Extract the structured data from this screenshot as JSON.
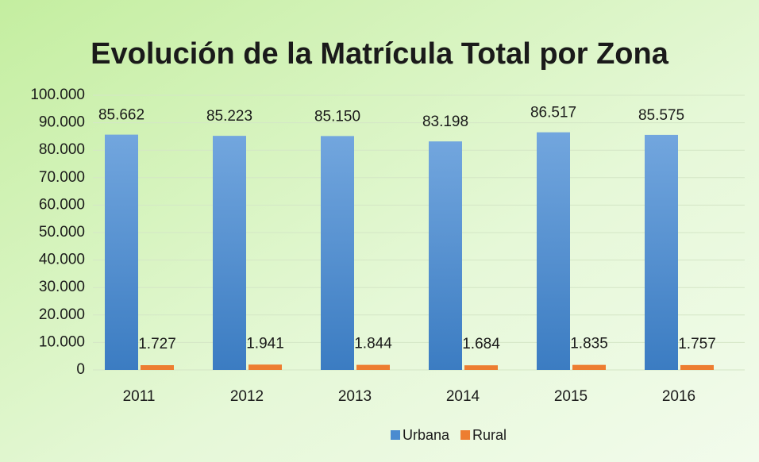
{
  "chart_data": {
    "type": "bar",
    "title": "Evolución de la Matrícula Total por Zona",
    "categories": [
      "2011",
      "2012",
      "2013",
      "2014",
      "2015",
      "2016"
    ],
    "series": [
      {
        "name": "Urbana",
        "color": "#4a8bd0",
        "values": [
          85662,
          85223,
          85150,
          83198,
          86517,
          85575
        ],
        "value_labels": [
          "85.662",
          "85.223",
          "85.150",
          "83.198",
          "86.517",
          "85.575"
        ]
      },
      {
        "name": "Rural",
        "color": "#ed7d31",
        "values": [
          1727,
          1941,
          1844,
          1684,
          1835,
          1757
        ],
        "value_labels": [
          "1.727",
          "1.941",
          "1.844",
          "1.684",
          "1.835",
          "1.757"
        ]
      }
    ],
    "ylim": [
      0,
      100000
    ],
    "yticks": [
      0,
      {
        "value": 10000,
        "label": "10.000"
      },
      {
        "value": 20000,
        "label": "20.000"
      },
      {
        "value": 30000,
        "label": "30.000"
      },
      {
        "value": 40000,
        "label": "40.000"
      },
      {
        "value": 50000,
        "label": "50.000"
      },
      {
        "value": 60000,
        "label": "60.000"
      },
      {
        "value": 70000,
        "label": "70.000"
      },
      {
        "value": 80000,
        "label": "80.000"
      },
      {
        "value": 90000,
        "label": "90.000"
      },
      {
        "value": 100000,
        "label": "100.000"
      }
    ],
    "grid": true,
    "legend": "bottom"
  }
}
